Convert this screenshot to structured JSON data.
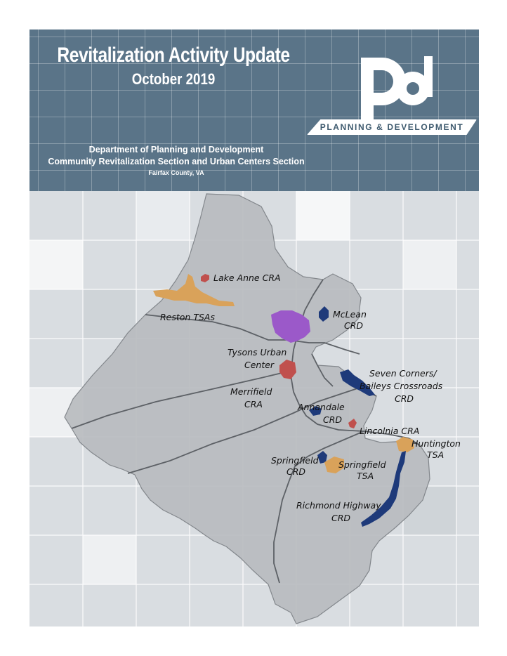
{
  "header": {
    "title": "Revitalization Activity Update",
    "date": "October 2019",
    "department": "Department of Planning and Development",
    "section": "Community Revitalization Section and Urban Centers Section",
    "county": "Fairfax County, VA",
    "logo_text": "PLANNING & DEVELOPMENT"
  },
  "map": {
    "colors": {
      "county": "#b9bcc0",
      "crd": "#1e3a7a",
      "cra": "#c0504d",
      "tsa": "#d9a25a",
      "urban_center": "#9b59c9",
      "road": "#5d6166"
    },
    "labels": {
      "lake_anne_cra": "Lake Anne CRA",
      "reston_tsas": "Reston TSAs",
      "mclean_l1": "McLean",
      "mclean_l2": "CRD",
      "tysons_l1": "Tysons Urban",
      "tysons_l2": "Center",
      "seven_l1": "Seven Corners/",
      "seven_l2": "Baileys Crossroads",
      "seven_l3": "CRD",
      "merrifield_l1": "Merrifield",
      "merrifield_l2": "CRA",
      "annandale_l1": "Annandale",
      "annandale_l2": "CRD",
      "lincolnia_cra": "Lincolnia CRA",
      "huntington_l1": "Huntington",
      "huntington_l2": "TSA",
      "springfield_crd_l1": "Springfield",
      "springfield_crd_l2": "CRD",
      "springfield_tsa_l1": "Springfield",
      "springfield_tsa_l2": "TSA",
      "richmond_l1": "Richmond Highway",
      "richmond_l2": "CRD"
    }
  }
}
